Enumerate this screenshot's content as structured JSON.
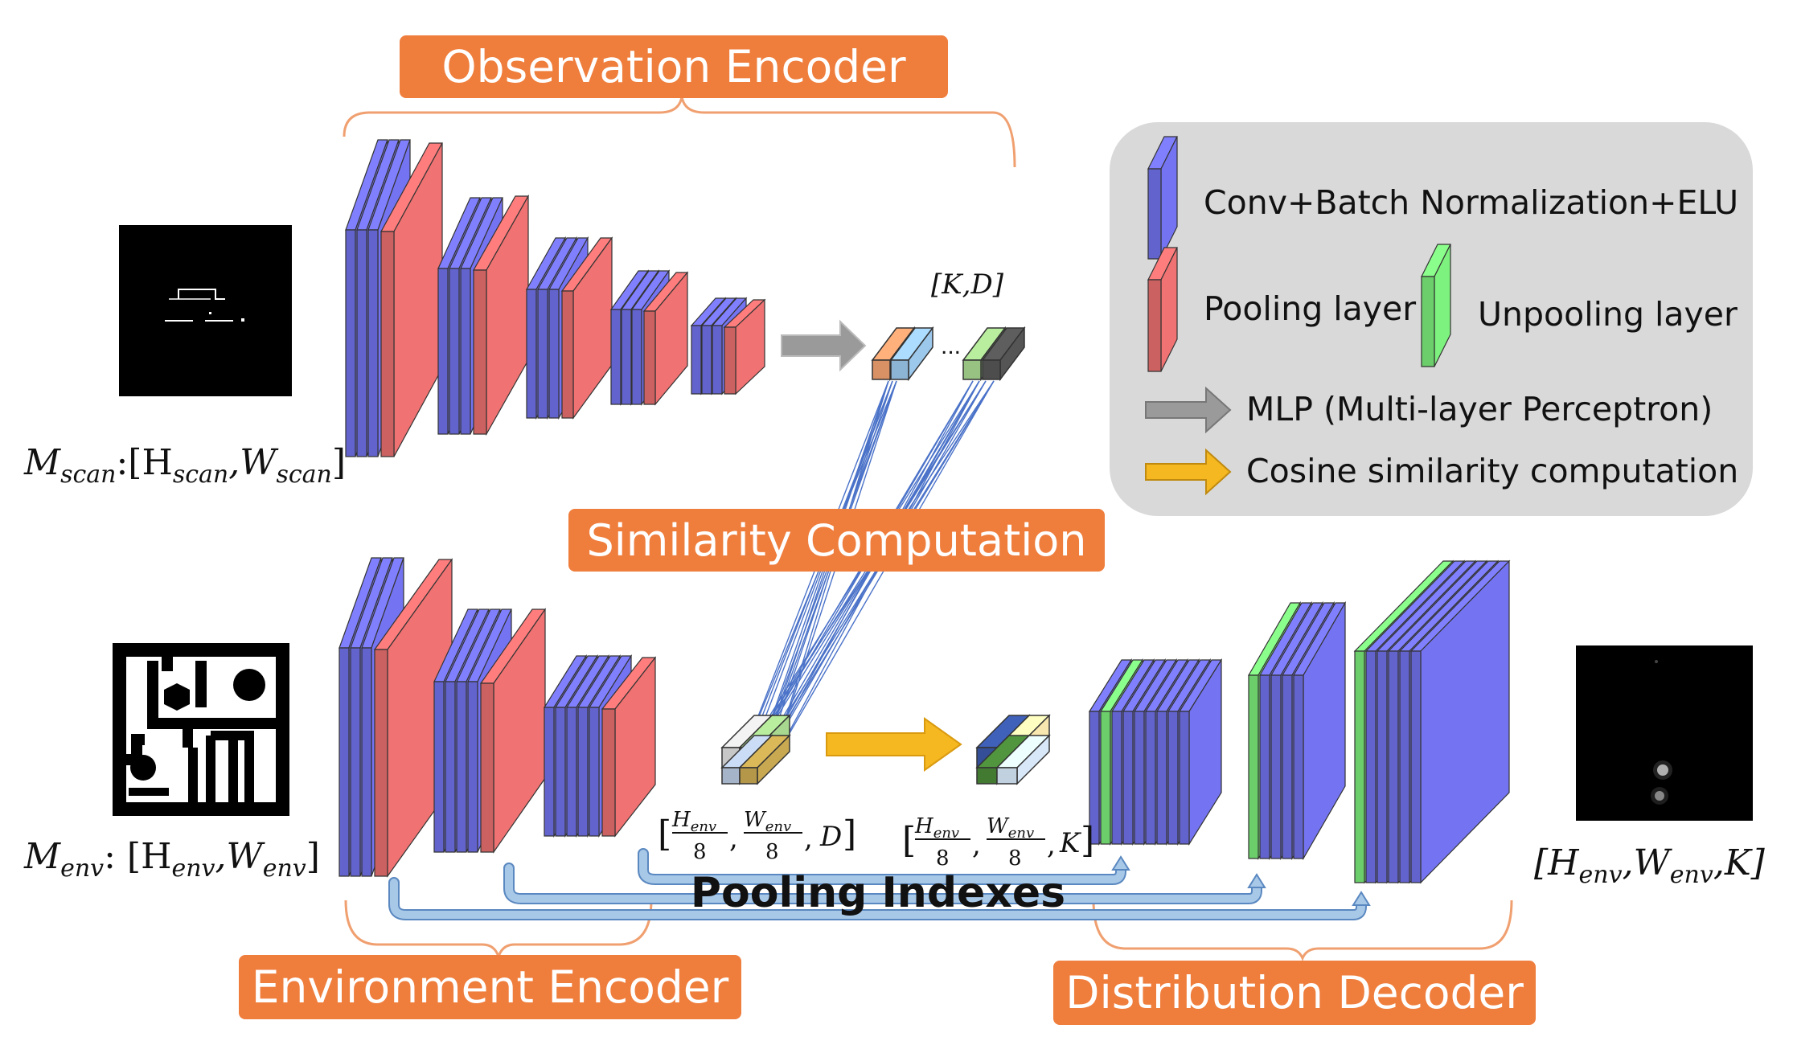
{
  "titles": {
    "observation_encoder": "Observation Encoder",
    "similarity_computation": "Similarity Computation",
    "environment_encoder": "Environment Encoder",
    "distribution_decoder": "Distribution Decoder"
  },
  "legend": {
    "conv": "Conv+Batch Normalization+ELU",
    "pooling": "Pooling layer",
    "unpooling": "Unpooling layer",
    "mlp": "MLP (Multi-layer Perceptron)",
    "cosine": "Cosine similarity computation"
  },
  "labels": {
    "m_scan": {
      "main": "M",
      "sub": "scan",
      "rest": ":[H",
      "sub2": "scan",
      "comma": ",W",
      "sub3": "scan",
      "end": "]"
    },
    "m_env": {
      "main": "M",
      "sub": "env",
      "rest": ": [H",
      "sub2": "env",
      "comma": ",W",
      "sub3": "env",
      "end": "]"
    },
    "output": {
      "open": "[H",
      "sub": "env",
      "comma": ",W",
      "sub2": "env",
      "end": ",K]"
    },
    "kd": "[K,D]",
    "dots": "...",
    "dim_d": {
      "h": "H",
      "hsub": "env",
      "w": "W",
      "wsub": "env",
      "den": "8",
      "last": "D"
    },
    "dim_k": {
      "h": "H",
      "hsub": "env",
      "w": "W",
      "wsub": "env",
      "den": "8",
      "last": "K"
    },
    "pooling_indexes": "Pooling Indexes"
  },
  "colors": {
    "conv": "#7474f2",
    "pooling": "#f07272",
    "unpooling": "#7ef27e",
    "mlp_arrow": "#9a9a9a",
    "cosine_arrow": "#f5b820",
    "title_bg": "#ef7d3c",
    "legend_bg": "#d9d9d9",
    "index_arrow": "#a8c8e8",
    "link_line": "#4a72c8"
  }
}
